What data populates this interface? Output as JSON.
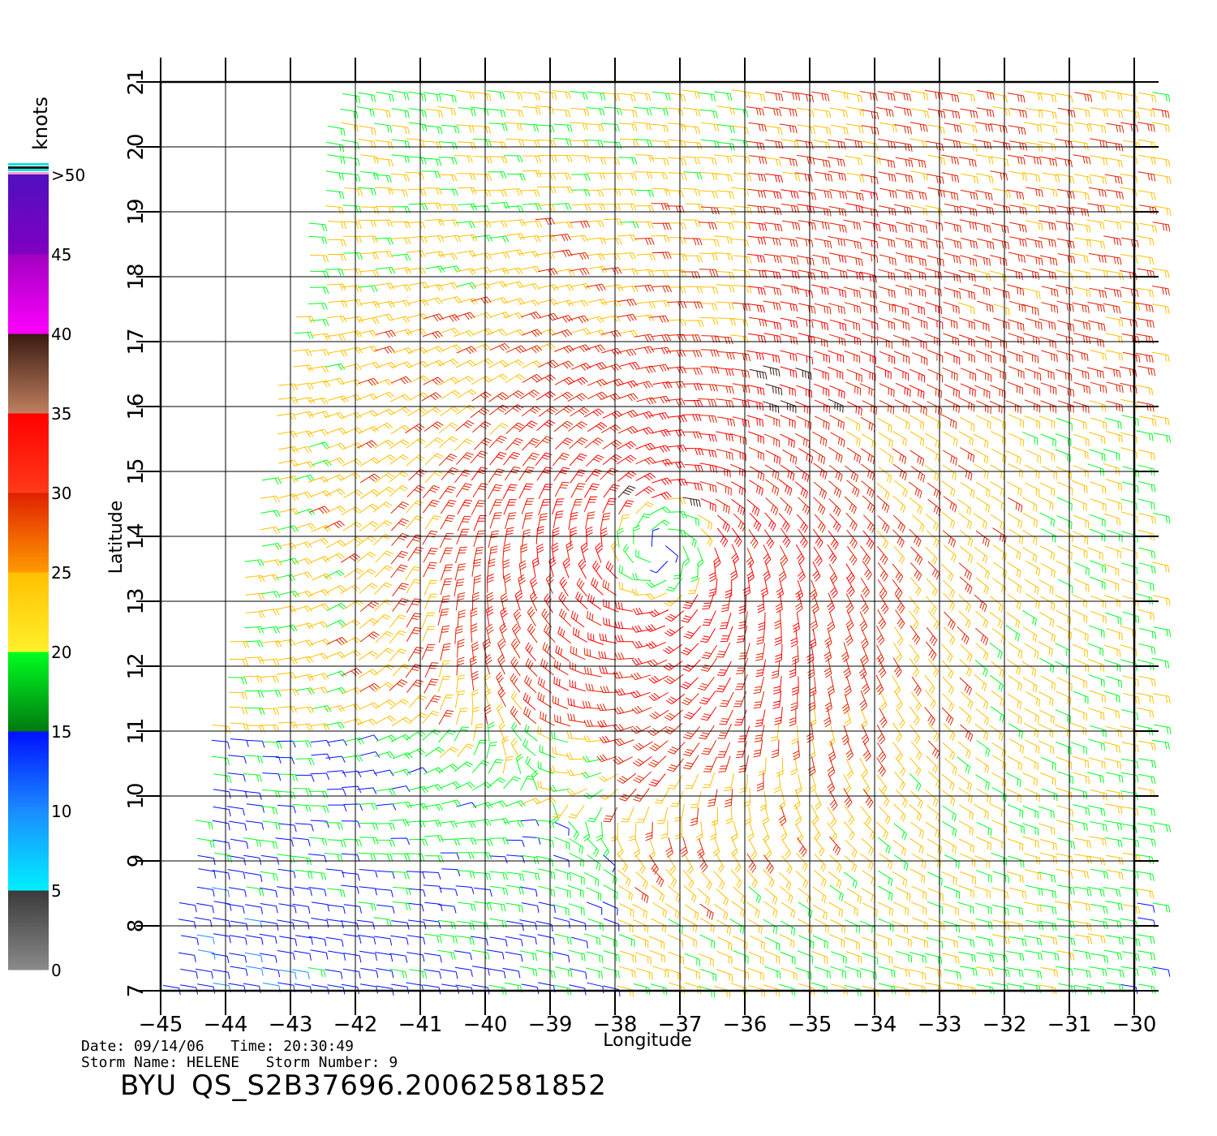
{
  "chart_data": {
    "type": "wind-barb-map",
    "xlabel": "Longitude",
    "ylabel": "Latitude",
    "xlim": [
      -45,
      -30
    ],
    "ylim": [
      7,
      21
    ],
    "xticks": [
      -45,
      -44,
      -43,
      -42,
      -41,
      -40,
      -39,
      -38,
      -37,
      -36,
      -35,
      -34,
      -33,
      -32,
      -31,
      -30
    ],
    "yticks": [
      7,
      8,
      9,
      10,
      11,
      12,
      13,
      14,
      15,
      16,
      17,
      18,
      19,
      20,
      21
    ],
    "grid": true,
    "colorbar": {
      "label": "knots",
      "tick_labels": [
        "0",
        "5",
        "10",
        "15",
        "20",
        "25",
        "30",
        "35",
        "40",
        "45",
        ">50"
      ],
      "tick_values": [
        0,
        5,
        10,
        15,
        20,
        25,
        30,
        35,
        40,
        45,
        50
      ],
      "bands": [
        {
          "from": 0,
          "to": 5,
          "top": "#3a3a3a",
          "bottom": "#8a8a8a"
        },
        {
          "from": 5,
          "to": 10,
          "top": "#1a8cff",
          "bottom": "#00f0ff"
        },
        {
          "from": 10,
          "to": 15,
          "top": "#0010ff",
          "bottom": "#1a8cff"
        },
        {
          "from": 15,
          "to": 20,
          "top": "#00ff20",
          "bottom": "#007a10"
        },
        {
          "from": 20,
          "to": 25,
          "top": "#ffc000",
          "bottom": "#fff02a"
        },
        {
          "from": 25,
          "to": 30,
          "top": "#e02000",
          "bottom": "#ff9a00"
        },
        {
          "from": 30,
          "to": 35,
          "top": "#ff0000",
          "bottom": "#ff3a1a"
        },
        {
          "from": 35,
          "to": 40,
          "top": "#3a1a10",
          "bottom": "#c08060"
        },
        {
          "from": 40,
          "to": 45,
          "top": "#a000c0",
          "bottom": "#ff00ff"
        },
        {
          "from": 45,
          "to": 50,
          "top": "#5010c0",
          "bottom": "#8000c0"
        }
      ]
    },
    "storm_center": {
      "lon": -37.3,
      "lat": 13.8
    },
    "wind_field_note": "cyclonic circulation"
  },
  "footer": {
    "date_label": "Date:",
    "date_value": "09/14/06",
    "time_label": "Time:",
    "time_value": "20:30:49",
    "storm_name_label": "Storm Name:",
    "storm_name_value": "HELENE",
    "storm_number_label": "Storm Number:",
    "storm_number_value": "9",
    "agency": "BYU",
    "product_id": "QS_S2B37696.20062581852"
  }
}
